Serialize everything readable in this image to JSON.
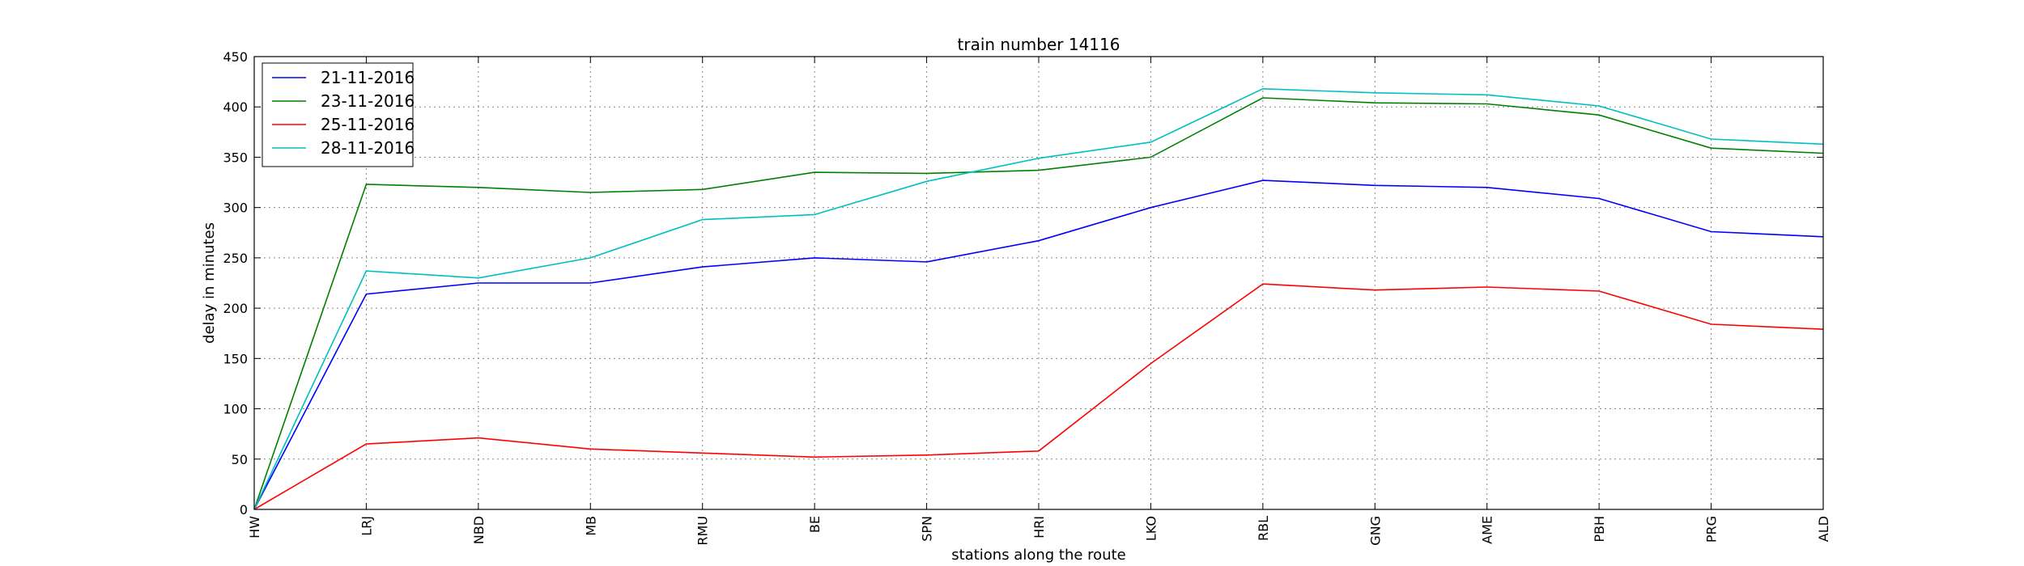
{
  "chart_data": {
    "type": "line",
    "title": "train number 14116",
    "xlabel": "stations along the route",
    "ylabel": "delay in minutes",
    "categories": [
      "HW",
      "LRJ",
      "NBD",
      "MB",
      "RMU",
      "BE",
      "SPN",
      "HRI",
      "LKO",
      "RBL",
      "GNG",
      "AME",
      "PBH",
      "PRG",
      "ALD"
    ],
    "ylim": [
      0,
      450
    ],
    "yticks": [
      0,
      50,
      100,
      150,
      200,
      250,
      300,
      350,
      400,
      450
    ],
    "grid": true,
    "legend_position": "top-left",
    "series": [
      {
        "name": "21-11-2016",
        "color": "#0000ff",
        "values": [
          0,
          214,
          225,
          225,
          241,
          250,
          246,
          267,
          300,
          327,
          322,
          320,
          309,
          276,
          271
        ]
      },
      {
        "name": "23-11-2016",
        "color": "#008000",
        "values": [
          0,
          323,
          320,
          315,
          318,
          335,
          334,
          337,
          350,
          409,
          404,
          403,
          392,
          359,
          354
        ]
      },
      {
        "name": "25-11-2016",
        "color": "#ff0000",
        "values": [
          0,
          65,
          71,
          60,
          56,
          52,
          54,
          58,
          145,
          224,
          218,
          221,
          217,
          184,
          179
        ]
      },
      {
        "name": "28-11-2016",
        "color": "#00bfbf",
        "values": [
          0,
          237,
          230,
          250,
          288,
          293,
          326,
          349,
          365,
          418,
          414,
          412,
          401,
          368,
          363
        ]
      }
    ]
  }
}
